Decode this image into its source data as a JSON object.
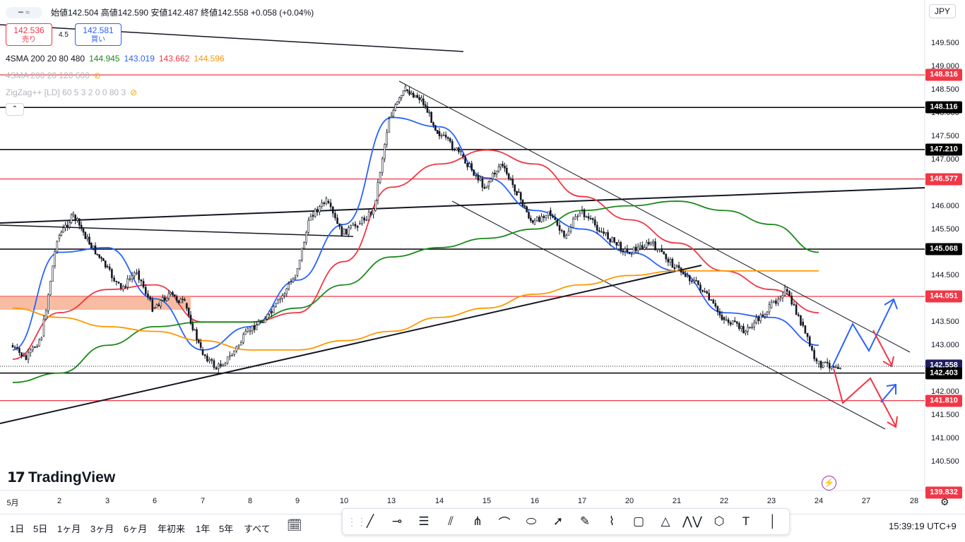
{
  "header": {
    "ohlc_text": "始値142.504 高値142.590 安値142.487 終値142.558 +0.058 (+0.04%)",
    "currency": "JPY"
  },
  "trade": {
    "sell_price": "142.536",
    "sell_label": "売り",
    "spread": "4.5",
    "buy_price": "142.581",
    "buy_label": "買い"
  },
  "indicators": {
    "sma1_label": "4SMA 200 20 80 480",
    "sma1_v1": "144.945",
    "sma1_v2": "143.019",
    "sma1_v3": "143.662",
    "sma1_v4": "144.596",
    "sma2_label": "4SMA 200 20 120 600",
    "zigzag_label": "ZigZag++ [LD] 60 5 3 2 0 0 80 3",
    "colors": {
      "green": "#1b8a1b",
      "blue": "#2962ff",
      "red": "#f23645",
      "orange": "#ff9800"
    }
  },
  "logo": {
    "text": "TradingView"
  },
  "timeframes": [
    "1日",
    "5日",
    "1ヶ月",
    "3ヶ月",
    "6ヶ月",
    "年初来",
    "1年",
    "5年",
    "すべて"
  ],
  "clock": "15:39:19 UTC+9",
  "draw_tools": [
    "trendline-icon",
    "horizontal-ray-icon",
    "parallel-channel-icon",
    "fib-retracement-icon",
    "pitchfork-icon",
    "path-icon",
    "ellipse-icon",
    "arrow-icon",
    "brush-icon",
    "highlighter-icon",
    "rectangle-icon",
    "triangle-icon",
    "pattern-icon",
    "xabcd-icon",
    "text-icon",
    "vertical-line-icon"
  ],
  "chart_data": {
    "type": "candlestick",
    "symbol_currency": "JPY",
    "ylim": [
      139.6,
      150.2
    ],
    "y_ticks": [
      "149.500",
      "149.000",
      "148.500",
      "148.000",
      "147.500",
      "147.000",
      "146.500",
      "146.000",
      "145.500",
      "145.000",
      "144.500",
      "144.000",
      "143.500",
      "143.000",
      "142.500",
      "142.000",
      "141.500",
      "141.000",
      "140.500"
    ],
    "x_ticks": [
      "5月",
      "2",
      "3",
      "6",
      "7",
      "8",
      "9",
      "10",
      "13",
      "14",
      "15",
      "16",
      "17",
      "20",
      "21",
      "22",
      "23",
      "24",
      "27",
      "28"
    ],
    "price_tags": [
      {
        "value": "148.816",
        "color": "#f23645"
      },
      {
        "value": "148.116",
        "color": "#000000"
      },
      {
        "value": "147.210",
        "color": "#000000"
      },
      {
        "value": "146.577",
        "color": "#f23645"
      },
      {
        "value": "145.068",
        "color": "#000000"
      },
      {
        "value": "144.051",
        "color": "#f23645"
      },
      {
        "value": "142.558",
        "color": "#1e1e5e"
      },
      {
        "value": "142.403",
        "color": "#000000"
      },
      {
        "value": "141.810",
        "color": "#f23645"
      },
      {
        "value": "139.832",
        "color": "#f23645"
      }
    ],
    "horizontal_lines": [
      {
        "price": 148.816,
        "color": "#f23645"
      },
      {
        "price": 148.116,
        "color": "#000000"
      },
      {
        "price": 147.21,
        "color": "#000000"
      },
      {
        "price": 146.577,
        "color": "#f23645"
      },
      {
        "price": 145.068,
        "color": "#000000"
      },
      {
        "price": 144.051,
        "color": "#f23645"
      },
      {
        "price": 142.403,
        "color": "#000000"
      },
      {
        "price": 141.81,
        "color": "#f23645"
      }
    ],
    "price_path": [
      [
        "5月",
        143.0
      ],
      [
        "5月",
        142.7
      ],
      [
        "5月",
        143.2
      ],
      [
        "2",
        145.3
      ],
      [
        "2",
        145.8
      ],
      [
        "2",
        145.2
      ],
      [
        "3",
        144.7
      ],
      [
        "3",
        144.2
      ],
      [
        "3",
        144.6
      ],
      [
        "6",
        143.8
      ],
      [
        "6",
        144.1
      ],
      [
        "6",
        143.9
      ],
      [
        "7",
        142.9
      ],
      [
        "7",
        142.5
      ],
      [
        "7",
        142.8
      ],
      [
        "8",
        143.3
      ],
      [
        "8",
        143.7
      ],
      [
        "9",
        144.5
      ],
      [
        "9",
        145.8
      ],
      [
        "9",
        146.1
      ],
      [
        "10",
        145.4
      ],
      [
        "10",
        145.6
      ],
      [
        "10",
        145.9
      ],
      [
        "13",
        147.9
      ],
      [
        "13",
        148.5
      ],
      [
        "13",
        148.3
      ],
      [
        "14",
        147.6
      ],
      [
        "14",
        147.1
      ],
      [
        "15",
        146.4
      ],
      [
        "15",
        146.9
      ],
      [
        "15",
        146.3
      ],
      [
        "16",
        145.6
      ],
      [
        "16",
        145.9
      ],
      [
        "16",
        145.3
      ],
      [
        "17",
        145.9
      ],
      [
        "17",
        145.4
      ],
      [
        "20",
        145.0
      ],
      [
        "20",
        145.2
      ],
      [
        "21",
        144.7
      ],
      [
        "21",
        144.3
      ],
      [
        "22",
        143.6
      ],
      [
        "22",
        143.3
      ],
      [
        "23",
        143.8
      ],
      [
        "23",
        144.2
      ],
      [
        "23",
        143.5
      ],
      [
        "24",
        142.6
      ],
      [
        "24",
        142.56
      ]
    ],
    "sma_series": [
      {
        "color": "#2962ff",
        "values": [
          [
            "5月",
            142.9
          ],
          [
            "2",
            145.0
          ],
          [
            "3",
            145.1
          ],
          [
            "6",
            144.0
          ],
          [
            "7",
            142.9
          ],
          [
            "8",
            143.4
          ],
          [
            "9",
            144.4
          ],
          [
            "10",
            145.6
          ],
          [
            "13",
            147.9
          ],
          [
            "14",
            147.7
          ],
          [
            "15",
            146.6
          ],
          [
            "16",
            145.9
          ],
          [
            "17",
            145.5
          ],
          [
            "20",
            145.0
          ],
          [
            "21",
            144.6
          ],
          [
            "22",
            143.7
          ],
          [
            "23",
            143.6
          ],
          [
            "24",
            143.0
          ]
        ]
      },
      {
        "color": "#f23645",
        "values": [
          [
            "5月",
            142.7
          ],
          [
            "2",
            143.7
          ],
          [
            "3",
            144.2
          ],
          [
            "6",
            144.3
          ],
          [
            "7",
            143.5
          ],
          [
            "8",
            143.5
          ],
          [
            "9",
            143.7
          ],
          [
            "10",
            144.8
          ],
          [
            "13",
            146.4
          ],
          [
            "14",
            146.9
          ],
          [
            "15",
            147.2
          ],
          [
            "16",
            146.9
          ],
          [
            "17",
            146.2
          ],
          [
            "20",
            145.7
          ],
          [
            "21",
            145.2
          ],
          [
            "22",
            144.6
          ],
          [
            "23",
            144.2
          ],
          [
            "24",
            143.7
          ]
        ]
      },
      {
        "color": "#1b8a1b",
        "values": [
          [
            "5月",
            142.2
          ],
          [
            "2",
            142.4
          ],
          [
            "3",
            143.0
          ],
          [
            "6",
            143.4
          ],
          [
            "7",
            143.5
          ],
          [
            "8",
            143.5
          ],
          [
            "9",
            143.8
          ],
          [
            "10",
            144.3
          ],
          [
            "13",
            144.9
          ],
          [
            "14",
            145.1
          ],
          [
            "15",
            145.3
          ],
          [
            "16",
            145.5
          ],
          [
            "17",
            145.9
          ],
          [
            "20",
            146.0
          ],
          [
            "21",
            146.1
          ],
          [
            "22",
            145.9
          ],
          [
            "23",
            145.6
          ],
          [
            "24",
            145.0
          ]
        ]
      },
      {
        "color": "#ff9800",
        "values": [
          [
            "5月",
            143.8
          ],
          [
            "2",
            143.6
          ],
          [
            "3",
            143.4
          ],
          [
            "6",
            143.3
          ],
          [
            "7",
            143.1
          ],
          [
            "8",
            142.9
          ],
          [
            "9",
            142.9
          ],
          [
            "10",
            143.1
          ],
          [
            "13",
            143.3
          ],
          [
            "14",
            143.6
          ],
          [
            "15",
            143.8
          ],
          [
            "16",
            144.1
          ],
          [
            "17",
            144.3
          ],
          [
            "20",
            144.5
          ],
          [
            "21",
            144.6
          ],
          [
            "22",
            144.6
          ],
          [
            "23",
            144.6
          ],
          [
            "24",
            144.6
          ]
        ]
      }
    ]
  }
}
